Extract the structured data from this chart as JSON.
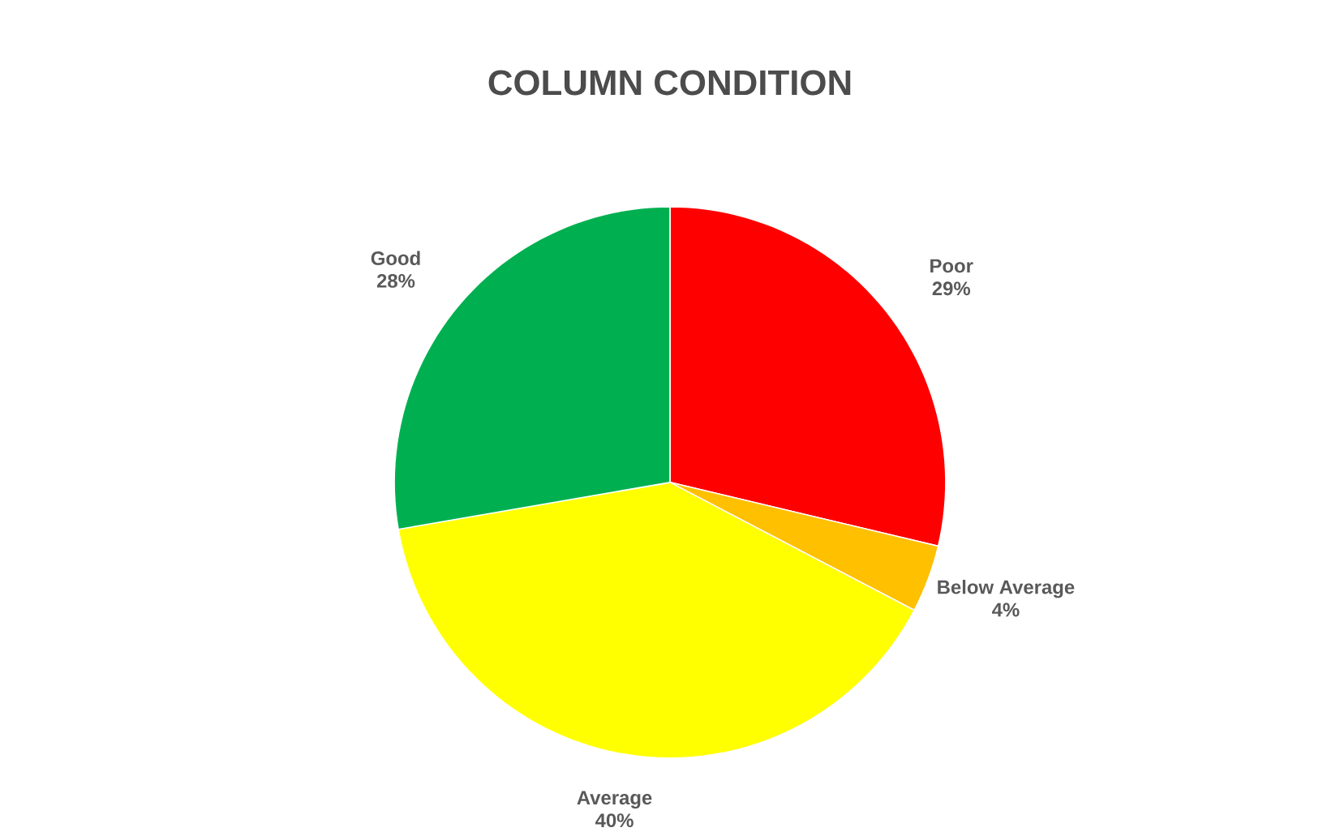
{
  "chart_data": {
    "type": "pie",
    "title": "COLUMN CONDITION",
    "categories": [
      "Poor",
      "Below Average",
      "Average",
      "Good"
    ],
    "values": [
      29,
      4,
      40,
      28
    ],
    "colors": [
      "#ff0000",
      "#ffc000",
      "#ffff00",
      "#00b050"
    ],
    "value_labels": [
      "29%",
      "4%",
      "40%",
      "28%"
    ]
  }
}
